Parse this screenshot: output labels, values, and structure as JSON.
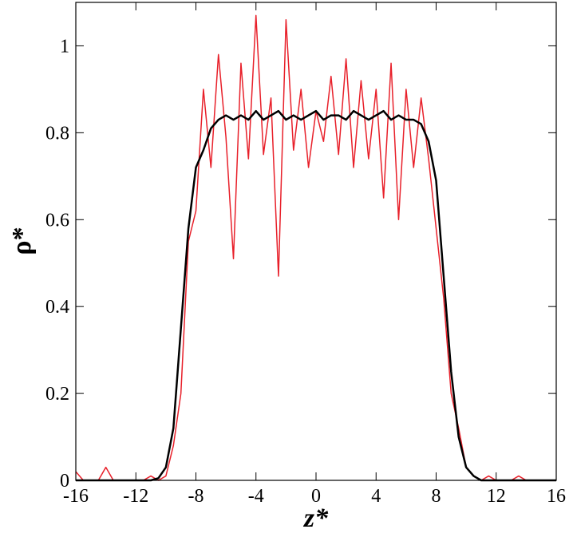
{
  "chart_data": {
    "type": "line",
    "x_label": "z*",
    "y_label": "ρ*",
    "x": [
      -16,
      -15.5,
      -15,
      -14.5,
      -14,
      -13.5,
      -13,
      -12.5,
      -12,
      -11.5,
      -11,
      -10.5,
      -10,
      -9.5,
      -9,
      -8.5,
      -8,
      -7.5,
      -7,
      -6.5,
      -6,
      -5.5,
      -5,
      -4.5,
      -4,
      -3.5,
      -3,
      -2.5,
      -2,
      -1.5,
      -1,
      -0.5,
      0,
      0.5,
      1,
      1.5,
      2,
      2.5,
      3,
      3.5,
      4,
      4.5,
      5,
      5.5,
      6,
      6.5,
      7,
      7.5,
      8,
      8.5,
      9,
      9.5,
      10,
      10.5,
      11,
      11.5,
      12,
      12.5,
      13,
      13.5,
      14,
      14.5,
      15,
      15.5,
      16
    ],
    "series": [
      {
        "color": "#e8202a",
        "values": [
          0.02,
          0,
          0,
          0,
          0.03,
          0,
          0,
          0,
          0,
          0,
          0.01,
          0,
          0.01,
          0.08,
          0.2,
          0.55,
          0.62,
          0.9,
          0.72,
          0.98,
          0.79,
          0.51,
          0.96,
          0.74,
          1.07,
          0.75,
          0.88,
          0.47,
          1.06,
          0.76,
          0.9,
          0.72,
          0.85,
          0.78,
          0.93,
          0.75,
          0.97,
          0.72,
          0.92,
          0.74,
          0.9,
          0.65,
          0.96,
          0.6,
          0.9,
          0.72,
          0.88,
          0.74,
          0.58,
          0.42,
          0.2,
          0.12,
          0.03,
          0.01,
          0,
          0.01,
          0,
          0,
          0,
          0.01,
          0,
          0,
          0,
          0,
          0
        ]
      },
      {
        "color": "#000000",
        "values": [
          0,
          0,
          0,
          0,
          0,
          0,
          0,
          0,
          0,
          0,
          0,
          0.005,
          0.03,
          0.12,
          0.35,
          0.58,
          0.72,
          0.76,
          0.81,
          0.83,
          0.84,
          0.83,
          0.84,
          0.83,
          0.85,
          0.83,
          0.84,
          0.85,
          0.83,
          0.84,
          0.83,
          0.84,
          0.85,
          0.83,
          0.84,
          0.84,
          0.83,
          0.85,
          0.84,
          0.83,
          0.84,
          0.85,
          0.83,
          0.84,
          0.83,
          0.83,
          0.82,
          0.78,
          0.69,
          0.47,
          0.25,
          0.1,
          0.03,
          0.01,
          0,
          0,
          0,
          0,
          0,
          0,
          0,
          0,
          0,
          0,
          0
        ]
      }
    ],
    "xlim": [
      -16,
      16
    ],
    "xticks": [
      -16,
      -12,
      -8,
      -4,
      0,
      4,
      8,
      12,
      16
    ],
    "ylim": [
      0,
      1.1
    ],
    "yticks": [
      0,
      0.2,
      0.4,
      0.6,
      0.8,
      1
    ]
  }
}
